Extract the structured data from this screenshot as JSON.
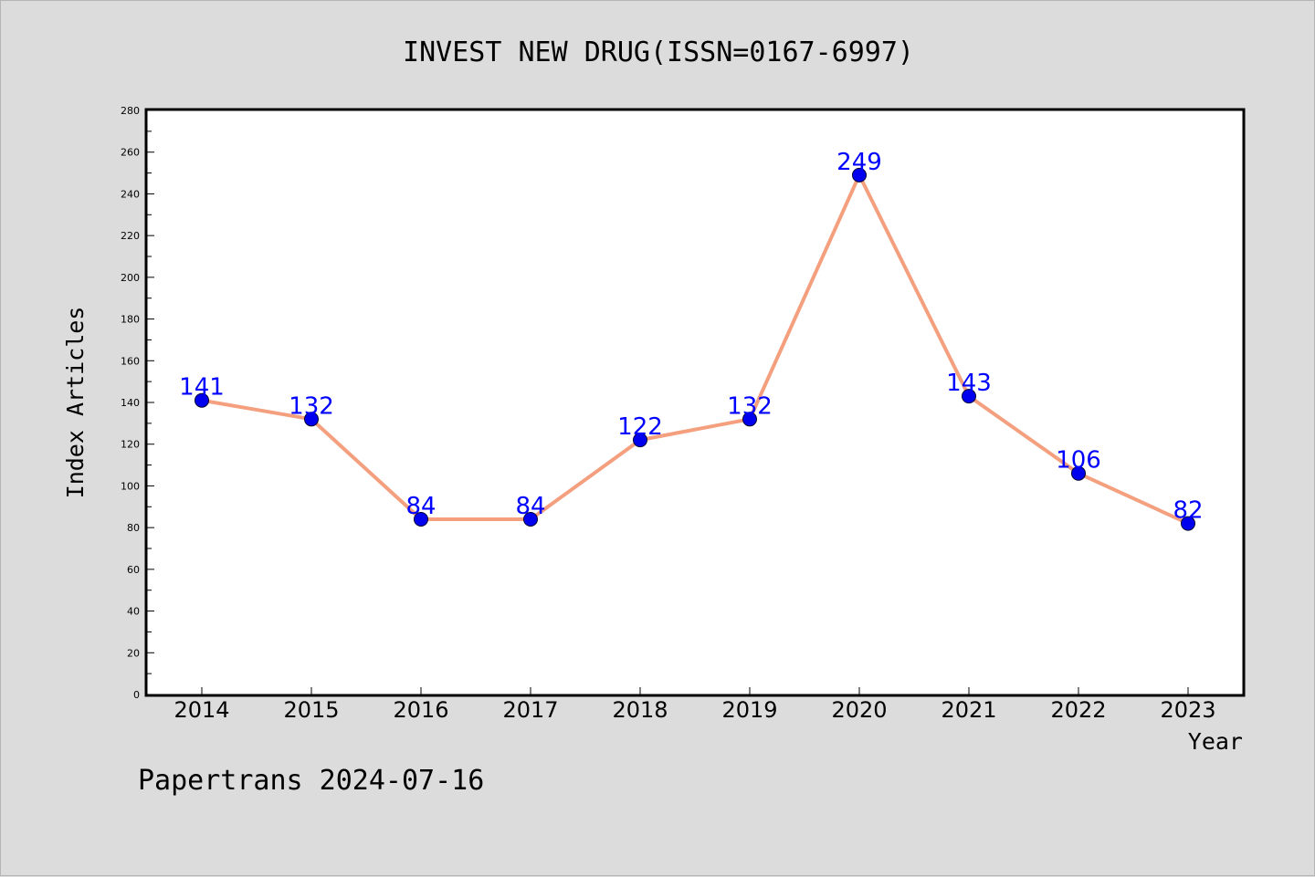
{
  "chart_data": {
    "type": "line",
    "title": "INVEST NEW DRUG(ISSN=0167-6997)",
    "xlabel": "Year",
    "ylabel": "Index Articles",
    "categories": [
      "2014",
      "2015",
      "2016",
      "2017",
      "2018",
      "2019",
      "2020",
      "2021",
      "2022",
      "2023"
    ],
    "series": [
      {
        "values": [
          141,
          132,
          84,
          84,
          122,
          132,
          249,
          143,
          106,
          82
        ]
      }
    ],
    "ylim": [
      0,
      280
    ],
    "yticks": [
      0,
      20,
      40,
      60,
      80,
      100,
      120,
      140,
      160,
      180,
      200,
      220,
      240,
      260,
      280
    ],
    "data_labels": true,
    "grid": false,
    "colors": {
      "line": "#f4a07f",
      "marker": "#0000ee",
      "marker_edge": "#000033",
      "label": "#0000ff",
      "background": "#dcdcdc",
      "plot_background": "#ffffff"
    }
  },
  "footer": {
    "text": "Papertrans 2024-07-16"
  }
}
